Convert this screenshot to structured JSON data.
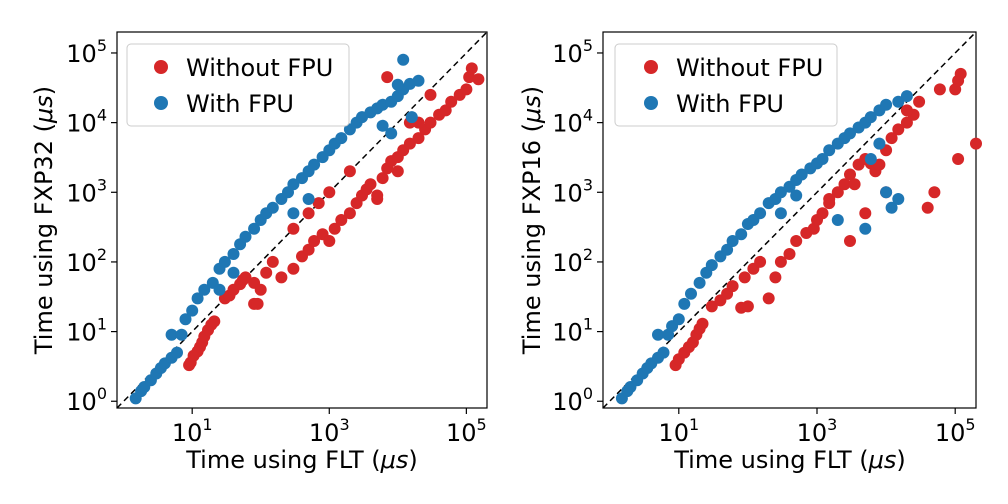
{
  "chart_data": [
    {
      "type": "scatter",
      "scale": "log-log",
      "xlabel_prefix": "Time using FLT (",
      "xlabel_unit": "μs",
      "xlabel_suffix": ")",
      "ylabel_prefix": "Time using FXP32 (",
      "ylabel_unit": "μs",
      "ylabel_suffix": ")",
      "xlim": [
        0.8,
        200000
      ],
      "ylim": [
        0.8,
        200000
      ],
      "x_ticks": [
        {
          "value": 10,
          "base": "10",
          "exp": "1"
        },
        {
          "value": 1000,
          "base": "10",
          "exp": "3"
        },
        {
          "value": 100000,
          "base": "10",
          "exp": "5"
        }
      ],
      "y_ticks": [
        {
          "value": 1,
          "base": "10",
          "exp": "0"
        },
        {
          "value": 10,
          "base": "10",
          "exp": "1"
        },
        {
          "value": 100,
          "base": "10",
          "exp": "2"
        },
        {
          "value": 1000,
          "base": "10",
          "exp": "3"
        },
        {
          "value": 10000,
          "base": "10",
          "exp": "4"
        },
        {
          "value": 100000,
          "base": "10",
          "exp": "5"
        }
      ],
      "reference_line": "y = x",
      "legend_position": "upper-left",
      "series": [
        {
          "name": "Without FPU",
          "color": "#d62728",
          "points": [
            [
              9,
              3.3
            ],
            [
              9.5,
              3.6
            ],
            [
              10.5,
              4.5
            ],
            [
              12,
              5.2
            ],
            [
              13,
              6
            ],
            [
              14,
              7
            ],
            [
              15,
              8.5
            ],
            [
              17,
              10.5
            ],
            [
              19,
              12.5
            ],
            [
              21,
              14
            ],
            [
              30,
              30
            ],
            [
              35,
              33
            ],
            [
              40,
              40
            ],
            [
              50,
              48
            ],
            [
              55,
              55
            ],
            [
              60,
              60
            ],
            [
              80,
              25
            ],
            [
              90,
              25
            ],
            [
              80,
              50
            ],
            [
              100,
              40
            ],
            [
              120,
              70
            ],
            [
              150,
              100
            ],
            [
              200,
              60
            ],
            [
              300,
              80
            ],
            [
              400,
              120
            ],
            [
              500,
              150
            ],
            [
              600,
              200
            ],
            [
              800,
              250
            ],
            [
              1000,
              200
            ],
            [
              1200,
              300
            ],
            [
              1500,
              400
            ],
            [
              2000,
              500
            ],
            [
              2500,
              700
            ],
            [
              3000,
              900
            ],
            [
              3500,
              1100
            ],
            [
              4000,
              1300
            ],
            [
              5000,
              800
            ],
            [
              6000,
              1600
            ],
            [
              7000,
              2200
            ],
            [
              8000,
              2800
            ],
            [
              10000,
              3200
            ],
            [
              12000,
              4000
            ],
            [
              15000,
              5000
            ],
            [
              20000,
              6000
            ],
            [
              25000,
              8000
            ],
            [
              30000,
              10000
            ],
            [
              40000,
              13000
            ],
            [
              50000,
              15000
            ],
            [
              60000,
              20000
            ],
            [
              80000,
              25000
            ],
            [
              100000,
              30000
            ],
            [
              110000,
              45000
            ],
            [
              120000,
              60000
            ],
            [
              150000,
              42000
            ],
            [
              7000,
              45000
            ],
            [
              5000,
              900
            ],
            [
              10000,
              2000
            ],
            [
              20000,
              10000
            ],
            [
              30000,
              25000
            ],
            [
              15000,
              10000
            ],
            [
              2000,
              2000
            ],
            [
              700,
              700
            ],
            [
              500,
              500
            ],
            [
              1000,
              1000
            ],
            [
              300,
              300
            ]
          ]
        },
        {
          "name": "With FPU",
          "color": "#1f77b4",
          "points": [
            [
              1.5,
              1.1
            ],
            [
              1.8,
              1.4
            ],
            [
              2,
              1.6
            ],
            [
              2.5,
              2
            ],
            [
              3,
              2.5
            ],
            [
              3.5,
              3
            ],
            [
              4,
              3.5
            ],
            [
              5,
              4.2
            ],
            [
              6,
              5
            ],
            [
              5,
              9
            ],
            [
              7,
              9
            ],
            [
              8,
              15
            ],
            [
              10,
              20
            ],
            [
              12,
              30
            ],
            [
              15,
              40
            ],
            [
              20,
              50
            ],
            [
              25,
              80
            ],
            [
              30,
              100
            ],
            [
              40,
              130
            ],
            [
              50,
              180
            ],
            [
              60,
              230
            ],
            [
              80,
              300
            ],
            [
              100,
              400
            ],
            [
              120,
              500
            ],
            [
              150,
              600
            ],
            [
              200,
              800
            ],
            [
              250,
              1000
            ],
            [
              300,
              1300
            ],
            [
              400,
              1600
            ],
            [
              500,
              2000
            ],
            [
              600,
              2500
            ],
            [
              800,
              3200
            ],
            [
              1000,
              4000
            ],
            [
              1200,
              5000
            ],
            [
              1500,
              6000
            ],
            [
              2000,
              8000
            ],
            [
              2500,
              10000
            ],
            [
              3000,
              12000
            ],
            [
              4000,
              14000
            ],
            [
              5000,
              16000
            ],
            [
              6000,
              18000
            ],
            [
              8000,
              20000
            ],
            [
              10000,
              24000
            ],
            [
              12000,
              30000
            ],
            [
              15000,
              36000
            ],
            [
              20000,
              40000
            ],
            [
              16000,
              12000
            ],
            [
              12000,
              80000
            ],
            [
              10000,
              35000
            ],
            [
              8000,
              7000
            ],
            [
              6000,
              9000
            ],
            [
              500,
              800
            ],
            [
              300,
              500
            ],
            [
              40,
              70
            ],
            [
              25,
              40
            ]
          ]
        }
      ]
    },
    {
      "type": "scatter",
      "scale": "log-log",
      "xlabel_prefix": "Time using FLT (",
      "xlabel_unit": "μs",
      "xlabel_suffix": ")",
      "ylabel_prefix": "Time using FXP16 (",
      "ylabel_unit": "μs",
      "ylabel_suffix": ")",
      "xlim": [
        0.8,
        200000
      ],
      "ylim": [
        0.8,
        200000
      ],
      "x_ticks": [
        {
          "value": 10,
          "base": "10",
          "exp": "1"
        },
        {
          "value": 1000,
          "base": "10",
          "exp": "3"
        },
        {
          "value": 100000,
          "base": "10",
          "exp": "5"
        }
      ],
      "y_ticks": [
        {
          "value": 1,
          "base": "10",
          "exp": "0"
        },
        {
          "value": 10,
          "base": "10",
          "exp": "1"
        },
        {
          "value": 100,
          "base": "10",
          "exp": "2"
        },
        {
          "value": 1000,
          "base": "10",
          "exp": "3"
        },
        {
          "value": 10000,
          "base": "10",
          "exp": "4"
        },
        {
          "value": 100000,
          "base": "10",
          "exp": "5"
        }
      ],
      "reference_line": "y = x",
      "legend_position": "upper-left",
      "series": [
        {
          "name": "Without FPU",
          "color": "#d62728",
          "points": [
            [
              9,
              3.3
            ],
            [
              10,
              4
            ],
            [
              12,
              5
            ],
            [
              14,
              6
            ],
            [
              16,
              7
            ],
            [
              18,
              9
            ],
            [
              20,
              11
            ],
            [
              22,
              13
            ],
            [
              30,
              23
            ],
            [
              40,
              28
            ],
            [
              50,
              35
            ],
            [
              60,
              45
            ],
            [
              80,
              22
            ],
            [
              100,
              23
            ],
            [
              90,
              60
            ],
            [
              120,
              80
            ],
            [
              150,
              100
            ],
            [
              200,
              30
            ],
            [
              250,
              60
            ],
            [
              300,
              100
            ],
            [
              400,
              130
            ],
            [
              500,
              200
            ],
            [
              700,
              260
            ],
            [
              900,
              300
            ],
            [
              1000,
              400
            ],
            [
              1200,
              500
            ],
            [
              1500,
              700
            ],
            [
              2000,
              1000
            ],
            [
              2500,
              1300
            ],
            [
              3000,
              1800
            ],
            [
              3500,
              1300
            ],
            [
              4000,
              2500
            ],
            [
              5000,
              3000
            ],
            [
              6000,
              2600
            ],
            [
              7000,
              2000
            ],
            [
              8000,
              2500
            ],
            [
              10000,
              4000
            ],
            [
              12000,
              6000
            ],
            [
              15000,
              8000
            ],
            [
              20000,
              10000
            ],
            [
              25000,
              13000
            ],
            [
              30000,
              20000
            ],
            [
              40000,
              600
            ],
            [
              50000,
              1000
            ],
            [
              60000,
              30000
            ],
            [
              100000,
              30000
            ],
            [
              110000,
              40000
            ],
            [
              120000,
              50000
            ],
            [
              110000,
              3000
            ],
            [
              200000,
              5000
            ],
            [
              20000,
              15000
            ],
            [
              10000,
              1000
            ],
            [
              5000,
              500
            ],
            [
              3000,
              200
            ],
            [
              1500,
              800
            ]
          ]
        },
        {
          "name": "With FPU",
          "color": "#1f77b4",
          "points": [
            [
              1.5,
              1.1
            ],
            [
              1.8,
              1.4
            ],
            [
              2,
              1.6
            ],
            [
              2.5,
              2
            ],
            [
              3,
              2.5
            ],
            [
              3.5,
              3
            ],
            [
              4,
              3.5
            ],
            [
              5,
              4.2
            ],
            [
              6,
              5
            ],
            [
              5,
              9
            ],
            [
              7,
              9
            ],
            [
              8,
              12
            ],
            [
              10,
              15
            ],
            [
              12,
              25
            ],
            [
              15,
              35
            ],
            [
              20,
              50
            ],
            [
              25,
              70
            ],
            [
              30,
              90
            ],
            [
              40,
              120
            ],
            [
              50,
              150
            ],
            [
              60,
              200
            ],
            [
              80,
              250
            ],
            [
              100,
              350
            ],
            [
              120,
              400
            ],
            [
              150,
              500
            ],
            [
              200,
              700
            ],
            [
              250,
              800
            ],
            [
              300,
              1000
            ],
            [
              400,
              1200
            ],
            [
              500,
              1500
            ],
            [
              600,
              1800
            ],
            [
              800,
              2200
            ],
            [
              1000,
              2600
            ],
            [
              1200,
              3000
            ],
            [
              1500,
              4000
            ],
            [
              2000,
              5000
            ],
            [
              2500,
              6000
            ],
            [
              3000,
              7000
            ],
            [
              4000,
              8500
            ],
            [
              5000,
              10000
            ],
            [
              6000,
              12000
            ],
            [
              8000,
              15000
            ],
            [
              10000,
              18000
            ],
            [
              15000,
              20000
            ],
            [
              20000,
              24000
            ],
            [
              12000,
              600
            ],
            [
              15000,
              800
            ],
            [
              10000,
              1000
            ],
            [
              8000,
              5000
            ],
            [
              6000,
              3000
            ],
            [
              500,
              900
            ],
            [
              300,
              500
            ],
            [
              2000,
              400
            ],
            [
              5000,
              300
            ]
          ]
        }
      ]
    }
  ]
}
